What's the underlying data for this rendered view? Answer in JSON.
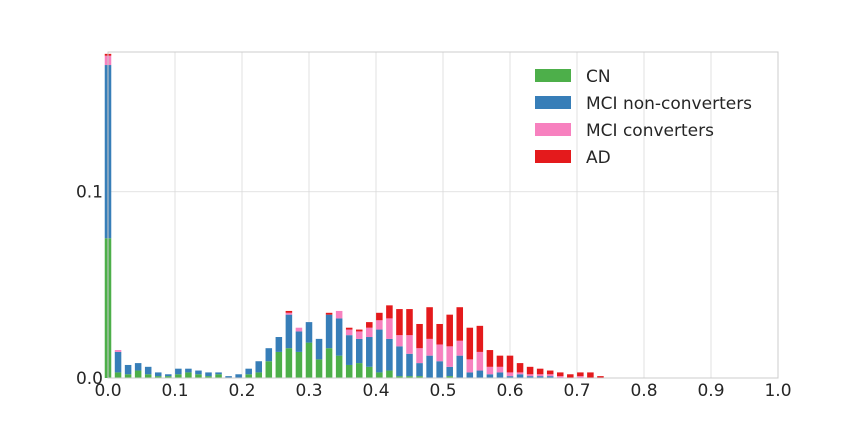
{
  "chart_data": {
    "type": "bar",
    "stacked": true,
    "title": "",
    "xlabel": "",
    "ylabel": "",
    "xlim": [
      0.0,
      1.0
    ],
    "ylim": [
      0.0,
      0.175
    ],
    "grid": true,
    "legend_position": "top-right",
    "x_ticks": [
      "0.0",
      "0.1",
      "0.2",
      "0.3",
      "0.4",
      "0.5",
      "0.6",
      "0.7",
      "0.8",
      "0.9",
      "1.0"
    ],
    "y_ticks": [
      "0.0",
      "0.1"
    ],
    "x": [
      0.0,
      0.015,
      0.03,
      0.045,
      0.06,
      0.075,
      0.09,
      0.105,
      0.12,
      0.135,
      0.15,
      0.165,
      0.18,
      0.195,
      0.21,
      0.225,
      0.24,
      0.255,
      0.27,
      0.285,
      0.3,
      0.315,
      0.33,
      0.345,
      0.36,
      0.375,
      0.39,
      0.405,
      0.42,
      0.435,
      0.45,
      0.465,
      0.48,
      0.495,
      0.51,
      0.525,
      0.54,
      0.555,
      0.57,
      0.585,
      0.6,
      0.615,
      0.63,
      0.645,
      0.66,
      0.675,
      0.69,
      0.705,
      0.72,
      0.735,
      0.75
    ],
    "series": [
      {
        "name": "CN",
        "color": "#4daf4a",
        "values": [
          0.075,
          0.003,
          0.002,
          0.004,
          0.002,
          0.001,
          0.001,
          0.002,
          0.003,
          0.002,
          0.001,
          0.002,
          0.0,
          0.0,
          0.002,
          0.003,
          0.009,
          0.014,
          0.016,
          0.014,
          0.019,
          0.01,
          0.016,
          0.012,
          0.007,
          0.008,
          0.006,
          0.003,
          0.004,
          0.001,
          0.001,
          0.001,
          0.0,
          0.0,
          0.001,
          0.0,
          0.0,
          0.0,
          0.0,
          0.0,
          0.0,
          0.0,
          0.0,
          0.0,
          0.0,
          0.0,
          0.0,
          0.0,
          0.0,
          0.0,
          0.0
        ]
      },
      {
        "name": "MCI non-converters",
        "color": "#377eb8",
        "values": [
          0.093,
          0.011,
          0.005,
          0.004,
          0.004,
          0.002,
          0.001,
          0.003,
          0.002,
          0.002,
          0.002,
          0.001,
          0.001,
          0.002,
          0.003,
          0.006,
          0.007,
          0.008,
          0.018,
          0.011,
          0.011,
          0.011,
          0.018,
          0.02,
          0.016,
          0.013,
          0.016,
          0.023,
          0.017,
          0.016,
          0.012,
          0.007,
          0.012,
          0.009,
          0.005,
          0.012,
          0.003,
          0.004,
          0.002,
          0.003,
          0.001,
          0.002,
          0.001,
          0.001,
          0.001,
          0.0,
          0.0,
          0.0,
          0.0,
          0.0,
          0.0
        ]
      },
      {
        "name": "MCI converters",
        "color": "#f781bf",
        "values": [
          0.005,
          0.001,
          0.0,
          0.0,
          0.0,
          0.0,
          0.0,
          0.0,
          0.0,
          0.0,
          0.0,
          0.0,
          0.0,
          0.0,
          0.0,
          0.0,
          0.0,
          0.0,
          0.001,
          0.002,
          0.0,
          0.0,
          0.0,
          0.004,
          0.003,
          0.004,
          0.005,
          0.005,
          0.011,
          0.006,
          0.01,
          0.008,
          0.009,
          0.009,
          0.011,
          0.008,
          0.007,
          0.01,
          0.004,
          0.003,
          0.002,
          0.001,
          0.001,
          0.001,
          0.001,
          0.001,
          0.0,
          0.001,
          0.0,
          0.0,
          0.0
        ]
      },
      {
        "name": "AD",
        "color": "#e41a1c",
        "values": [
          0.001,
          0.0,
          0.0,
          0.0,
          0.0,
          0.0,
          0.0,
          0.0,
          0.0,
          0.0,
          0.0,
          0.0,
          0.0,
          0.0,
          0.0,
          0.0,
          0.0,
          0.0,
          0.001,
          0.0,
          0.0,
          0.0,
          0.001,
          0.0,
          0.001,
          0.001,
          0.003,
          0.004,
          0.007,
          0.014,
          0.014,
          0.013,
          0.017,
          0.011,
          0.017,
          0.018,
          0.017,
          0.014,
          0.009,
          0.006,
          0.009,
          0.005,
          0.004,
          0.003,
          0.002,
          0.002,
          0.002,
          0.002,
          0.003,
          0.001,
          0.0
        ]
      }
    ]
  }
}
